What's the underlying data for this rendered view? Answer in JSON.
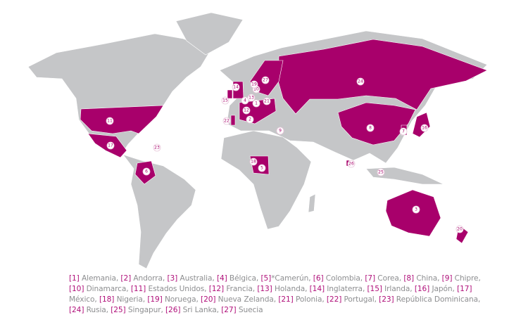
{
  "colors": {
    "land": "#c5c6c8",
    "highlight": "#a8006b",
    "legend_number": "#b0107a",
    "legend_text": "#8d8e90"
  },
  "markers": [
    "1",
    "2",
    "3",
    "4",
    "5",
    "6",
    "7",
    "8",
    "9",
    "10",
    "11",
    "12",
    "13",
    "14",
    "15",
    "16",
    "17",
    "18",
    "19",
    "20",
    "21",
    "22",
    "23",
    "24",
    "25",
    "26",
    "27"
  ],
  "legend": [
    {
      "num": "[1]",
      "name": " Alemania,"
    },
    {
      "num": "[2]",
      "name": " Andorra,"
    },
    {
      "num": "[3]",
      "name": " Australia,"
    },
    {
      "num": "[4]",
      "name": " Bélgica,"
    },
    {
      "num": "[5]",
      "name": "*Camerún,"
    },
    {
      "num": "[6]",
      "name": " Colombia,"
    },
    {
      "num": "[7]",
      "name": " Corea,"
    },
    {
      "num": "[8]",
      "name": " China,"
    },
    {
      "num": "[9]",
      "name": " Chipre,"
    },
    {
      "num": "[10]",
      "name": " Dinamarca,"
    },
    {
      "num": "[11]",
      "name": " Estados Unidos,"
    },
    {
      "num": "[12]",
      "name": " Francia,"
    },
    {
      "num": "[13]",
      "name": " Holanda,"
    },
    {
      "num": "[14]",
      "name": " Inglaterra,"
    },
    {
      "num": "[15]",
      "name": " Irlanda,"
    },
    {
      "num": "[16]",
      "name": " Japón,"
    },
    {
      "num": "[17]",
      "name": " México,"
    },
    {
      "num": "[18]",
      "name": " Nigeria,"
    },
    {
      "num": "[19]",
      "name": " Noruega,"
    },
    {
      "num": "[20]",
      "name": " Nueva Zelanda,"
    },
    {
      "num": "[21]",
      "name": " Polonia,"
    },
    {
      "num": "[22]",
      "name": " Portugal,"
    },
    {
      "num": "[23]",
      "name": " República Dominicana,"
    },
    {
      "num": "[24]",
      "name": " Rusia,"
    },
    {
      "num": "[25]",
      "name": " Singapur,"
    },
    {
      "num": "[26]",
      "name": " Sri Lanka,"
    },
    {
      "num": "[27]",
      "name": " Suecia"
    }
  ]
}
